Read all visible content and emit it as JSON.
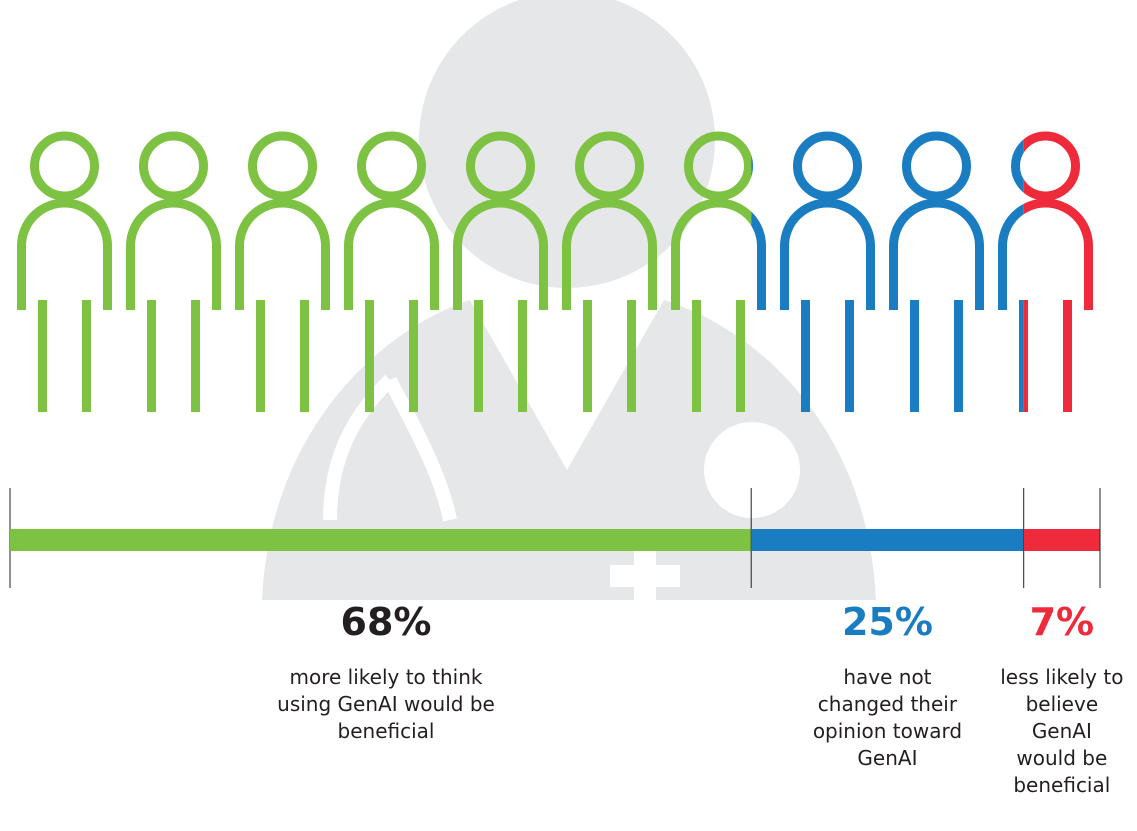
{
  "chart_data": {
    "type": "stacked-bar",
    "xlim": [
      0,
      100
    ],
    "series": [
      {
        "name": "more likely to think using GenAI would be beneficial",
        "color": "#7dc242",
        "values": [
          68
        ],
        "value_labels": [
          "68%"
        ]
      },
      {
        "name": "have not changed their opinion toward GenAI",
        "color": "#1a7dc2",
        "values": [
          25
        ],
        "value_labels": [
          "25%"
        ]
      },
      {
        "name": "less likely to believe GenAI would be beneficial",
        "color": "#ee2a3b",
        "values": [
          7
        ],
        "value_labels": [
          "7%"
        ]
      }
    ]
  }
}
